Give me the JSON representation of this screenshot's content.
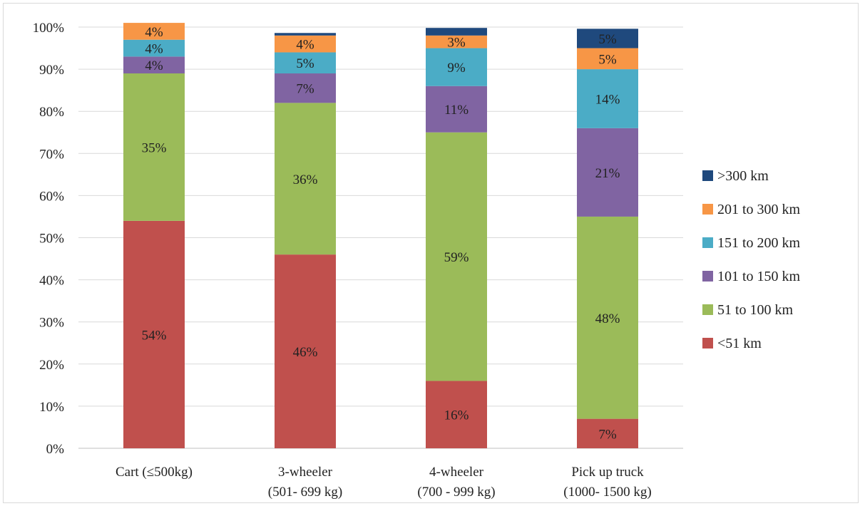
{
  "chart_data": {
    "type": "bar",
    "stacked": true,
    "percent": true,
    "title": "",
    "xlabel": "",
    "ylabel": "",
    "ylim": [
      0,
      100
    ],
    "yticks": [
      "0%",
      "10%",
      "20%",
      "30%",
      "40%",
      "50%",
      "60%",
      "70%",
      "80%",
      "90%",
      "100%"
    ],
    "ytick_values": [
      0,
      10,
      20,
      30,
      40,
      50,
      60,
      70,
      80,
      90,
      100
    ],
    "grid": true,
    "legend_position": "right",
    "categories": [
      {
        "line1": "Cart (≤500kg)",
        "line2": ""
      },
      {
        "line1": "3-wheeler",
        "line2": "(501- 699 kg)"
      },
      {
        "line1": "4-wheeler",
        "line2": "(700 - 999 kg)"
      },
      {
        "line1": "Pick up truck",
        "line2": "(1000- 1500 kg)"
      }
    ],
    "series": [
      {
        "name": "<51 km",
        "color": "#c0504d",
        "values": [
          54,
          46,
          16,
          7
        ],
        "labels": [
          "54%",
          "46%",
          "16%",
          "7%"
        ]
      },
      {
        "name": "51 to 100 km",
        "color": "#9bbb59",
        "values": [
          35,
          36,
          59,
          48
        ],
        "labels": [
          "35%",
          "36%",
          "59%",
          "48%"
        ]
      },
      {
        "name": "101 to 150 km",
        "color": "#8064a2",
        "values": [
          4,
          7,
          11,
          21
        ],
        "labels": [
          "4%",
          "7%",
          "11%",
          "21%"
        ]
      },
      {
        "name": "151 to 200 km",
        "color": "#4bacc6",
        "values": [
          4,
          5,
          9,
          14
        ],
        "labels": [
          "4%",
          "5%",
          "9%",
          "14%"
        ]
      },
      {
        "name": "201 to 300 km",
        "color": "#f79646",
        "values": [
          4,
          4,
          3,
          5
        ],
        "labels": [
          "4%",
          "4%",
          "3%",
          "5%"
        ]
      },
      {
        "name": ">300 km",
        "color": "#1f497d",
        "values": [
          0,
          0.6,
          1.8,
          4.6
        ],
        "labels": [
          "",
          "",
          "",
          "5%"
        ]
      }
    ]
  }
}
